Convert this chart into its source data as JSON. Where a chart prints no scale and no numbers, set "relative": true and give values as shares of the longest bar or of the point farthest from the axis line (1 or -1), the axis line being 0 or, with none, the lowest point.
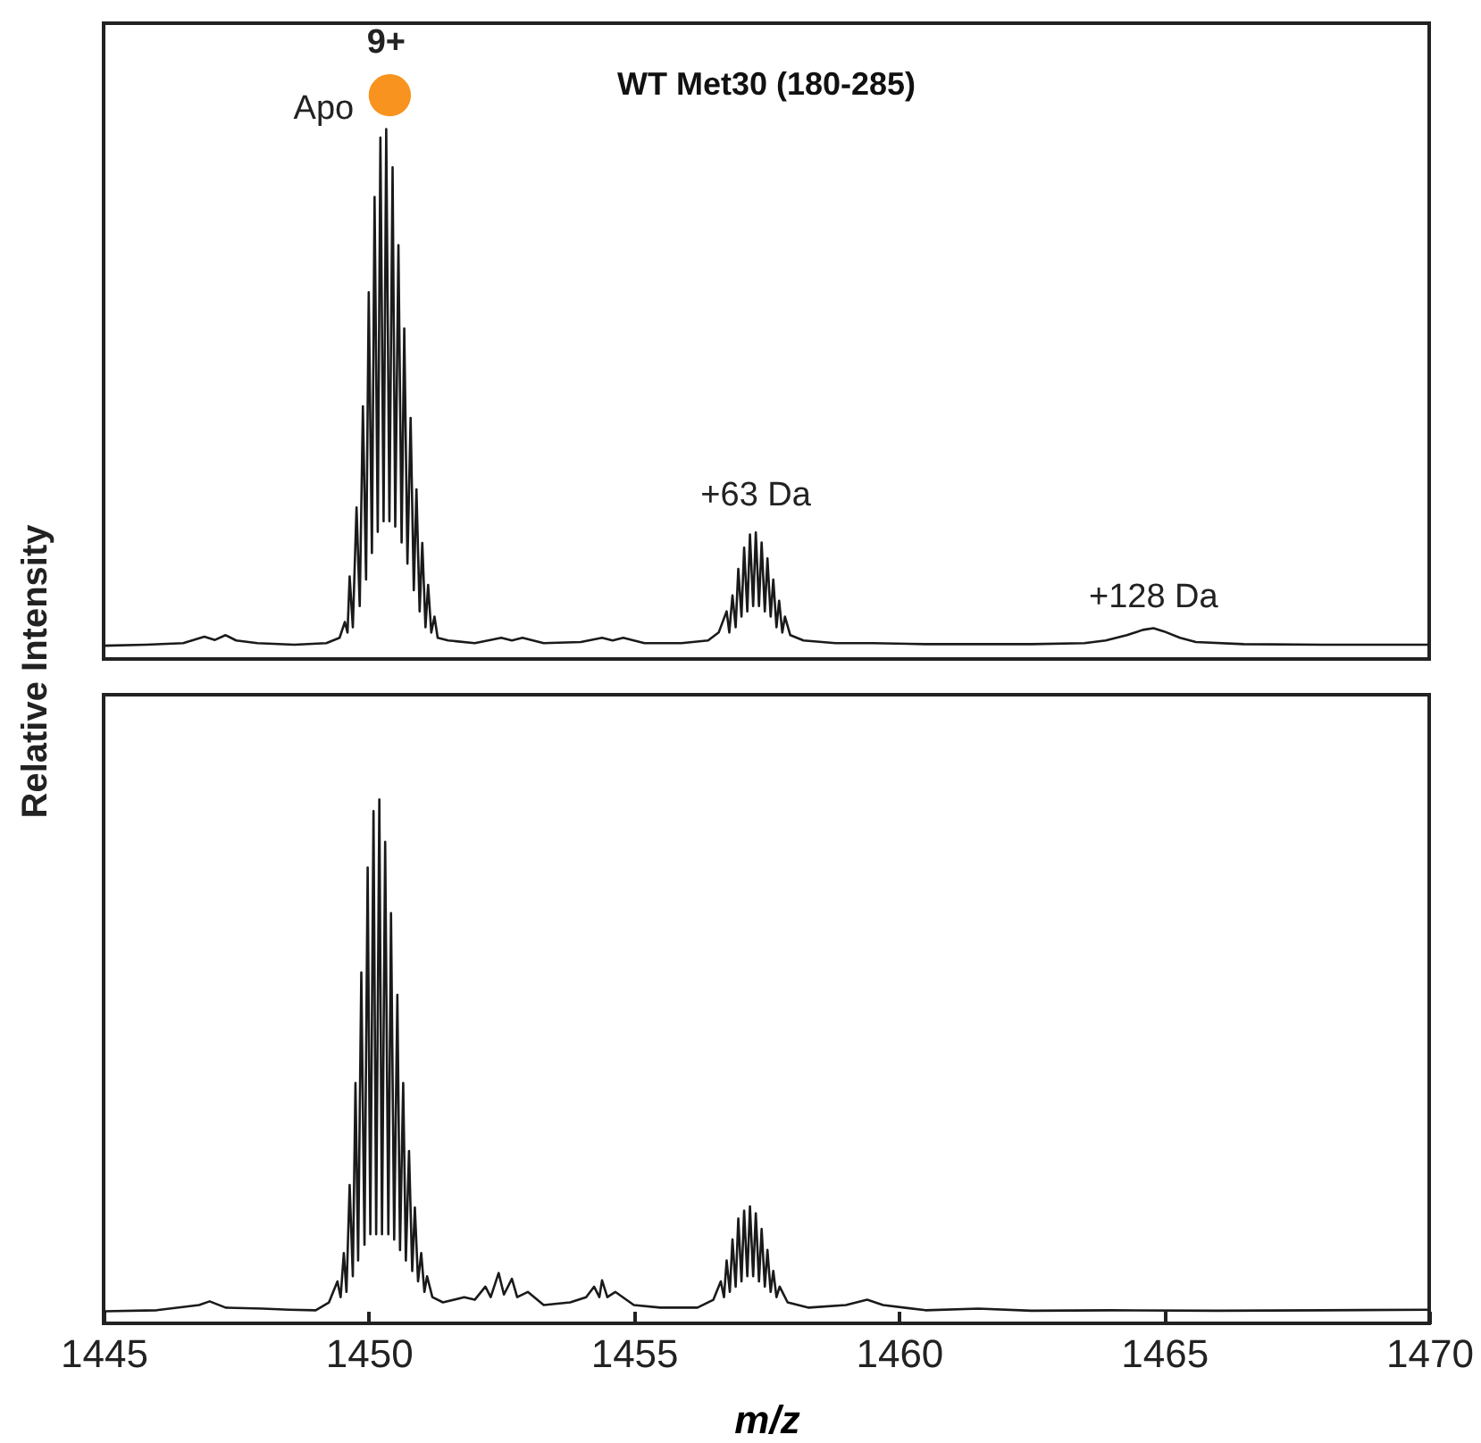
{
  "chart_data": [
    {
      "type": "line",
      "title": "WT Met30 (180-285)",
      "ylabel": "Relative Intensity",
      "relative": true,
      "xlim": [
        1445,
        1470
      ],
      "xticks": [
        1445,
        1450,
        1455,
        1460,
        1465,
        1470
      ],
      "tick_labels": false,
      "annotations": [
        {
          "text": "9+",
          "x": 1450.33,
          "y": 1
        },
        {
          "text": "Apo",
          "x": 1450.33,
          "y": 1
        },
        {
          "text": "+63 Da",
          "x": 1457.3,
          "y": 0.239
        },
        {
          "text": "+128 Da",
          "x": 1464.8,
          "y": 0.058
        }
      ],
      "x": [
        1445.0,
        1445.8,
        1446.5,
        1446.9,
        1447.1,
        1447.3,
        1447.5,
        1447.9,
        1448.6,
        1449.2,
        1449.45,
        1449.55,
        1449.6,
        1449.64,
        1449.7,
        1449.77,
        1449.83,
        1449.89,
        1449.95,
        1450.0,
        1450.06,
        1450.11,
        1450.17,
        1450.22,
        1450.28,
        1450.33,
        1450.39,
        1450.45,
        1450.5,
        1450.56,
        1450.62,
        1450.67,
        1450.73,
        1450.79,
        1450.85,
        1450.9,
        1450.96,
        1451.01,
        1451.07,
        1451.12,
        1451.18,
        1451.24,
        1451.3,
        1451.5,
        1452.0,
        1452.5,
        1452.7,
        1452.9,
        1453.3,
        1454.0,
        1454.4,
        1454.6,
        1454.8,
        1455.2,
        1455.9,
        1456.4,
        1456.6,
        1456.75,
        1456.8,
        1456.86,
        1456.92,
        1456.97,
        1457.03,
        1457.08,
        1457.14,
        1457.19,
        1457.25,
        1457.3,
        1457.36,
        1457.41,
        1457.47,
        1457.52,
        1457.58,
        1457.63,
        1457.69,
        1457.74,
        1457.8,
        1457.85,
        1457.95,
        1458.2,
        1458.8,
        1459.5,
        1460.5,
        1461.5,
        1462.5,
        1463.5,
        1463.9,
        1464.3,
        1464.6,
        1464.8,
        1465.0,
        1465.3,
        1465.6,
        1466.5,
        1468.0,
        1470.0
      ],
      "series": [
        {
          "color": "#1a1a1a",
          "values": [
            0.025,
            0.027,
            0.03,
            0.042,
            0.036,
            0.045,
            0.035,
            0.03,
            0.027,
            0.03,
            0.04,
            0.07,
            0.05,
            0.156,
            0.06,
            0.286,
            0.1,
            0.477,
            0.15,
            0.692,
            0.2,
            0.872,
            0.24,
            0.984,
            0.26,
            1,
            0.26,
            0.928,
            0.25,
            0.781,
            0.22,
            0.624,
            0.18,
            0.455,
            0.13,
            0.32,
            0.09,
            0.219,
            0.06,
            0.14,
            0.05,
            0.08,
            0.04,
            0.035,
            0.03,
            0.04,
            0.035,
            0.04,
            0.03,
            0.032,
            0.04,
            0.035,
            0.04,
            0.03,
            0.03,
            0.035,
            0.05,
            0.09,
            0.05,
            0.12,
            0.06,
            0.17,
            0.08,
            0.21,
            0.09,
            0.235,
            0.1,
            0.239,
            0.1,
            0.22,
            0.09,
            0.19,
            0.08,
            0.15,
            0.06,
            0.11,
            0.05,
            0.08,
            0.045,
            0.035,
            0.03,
            0.03,
            0.028,
            0.028,
            0.028,
            0.03,
            0.035,
            0.045,
            0.055,
            0.058,
            0.052,
            0.04,
            0.032,
            0.028,
            0.027,
            0.027
          ]
        }
      ]
    },
    {
      "type": "line",
      "xlabel": "m/z",
      "relative": true,
      "xlim": [
        1445,
        1470
      ],
      "xticks": [
        1445,
        1450,
        1455,
        1460,
        1465,
        1470
      ],
      "tick_labels": "x",
      "x": [
        1445.0,
        1446.0,
        1446.8,
        1447.0,
        1447.3,
        1448.0,
        1448.5,
        1449.0,
        1449.25,
        1449.41,
        1449.47,
        1449.53,
        1449.58,
        1449.64,
        1449.7,
        1449.75,
        1449.8,
        1449.86,
        1449.92,
        1449.98,
        1450.03,
        1450.09,
        1450.14,
        1450.2,
        1450.25,
        1450.31,
        1450.37,
        1450.42,
        1450.48,
        1450.54,
        1450.59,
        1450.65,
        1450.7,
        1450.76,
        1450.82,
        1450.87,
        1450.93,
        1450.99,
        1451.05,
        1451.1,
        1451.2,
        1451.4,
        1451.8,
        1452.0,
        1452.2,
        1452.3,
        1452.45,
        1452.55,
        1452.7,
        1452.8,
        1453.0,
        1453.3,
        1453.8,
        1454.1,
        1454.25,
        1454.35,
        1454.4,
        1454.5,
        1454.65,
        1455.0,
        1455.5,
        1456.2,
        1456.5,
        1456.64,
        1456.7,
        1456.75,
        1456.81,
        1456.86,
        1456.92,
        1456.97,
        1457.03,
        1457.08,
        1457.14,
        1457.19,
        1457.25,
        1457.3,
        1457.36,
        1457.41,
        1457.47,
        1457.52,
        1457.58,
        1457.63,
        1457.69,
        1457.75,
        1457.9,
        1458.3,
        1459.0,
        1459.4,
        1459.7,
        1460.5,
        1461.5,
        1462.5,
        1464.0,
        1466.0,
        1468.0,
        1470.0
      ],
      "series": [
        {
          "color": "#1a1a1a",
          "values": [
            0.023,
            0.025,
            0.035,
            0.042,
            0.03,
            0.028,
            0.026,
            0.025,
            0.04,
            0.08,
            0.05,
            0.134,
            0.06,
            0.264,
            0.09,
            0.459,
            0.12,
            0.67,
            0.15,
            0.87,
            0.17,
            0.978,
            0.17,
            1,
            0.17,
            0.919,
            0.17,
            0.783,
            0.16,
            0.627,
            0.14,
            0.459,
            0.12,
            0.329,
            0.1,
            0.221,
            0.08,
            0.134,
            0.06,
            0.09,
            0.05,
            0.04,
            0.05,
            0.045,
            0.07,
            0.05,
            0.096,
            0.055,
            0.085,
            0.05,
            0.06,
            0.035,
            0.04,
            0.05,
            0.07,
            0.05,
            0.082,
            0.05,
            0.06,
            0.035,
            0.03,
            0.03,
            0.045,
            0.08,
            0.05,
            0.12,
            0.06,
            0.16,
            0.07,
            0.2,
            0.08,
            0.215,
            0.09,
            0.223,
            0.09,
            0.21,
            0.08,
            0.18,
            0.07,
            0.14,
            0.06,
            0.1,
            0.05,
            0.07,
            0.04,
            0.03,
            0.035,
            0.045,
            0.035,
            0.025,
            0.028,
            0.024,
            0.025,
            0.024,
            0.025,
            0.026
          ]
        }
      ]
    }
  ]
}
